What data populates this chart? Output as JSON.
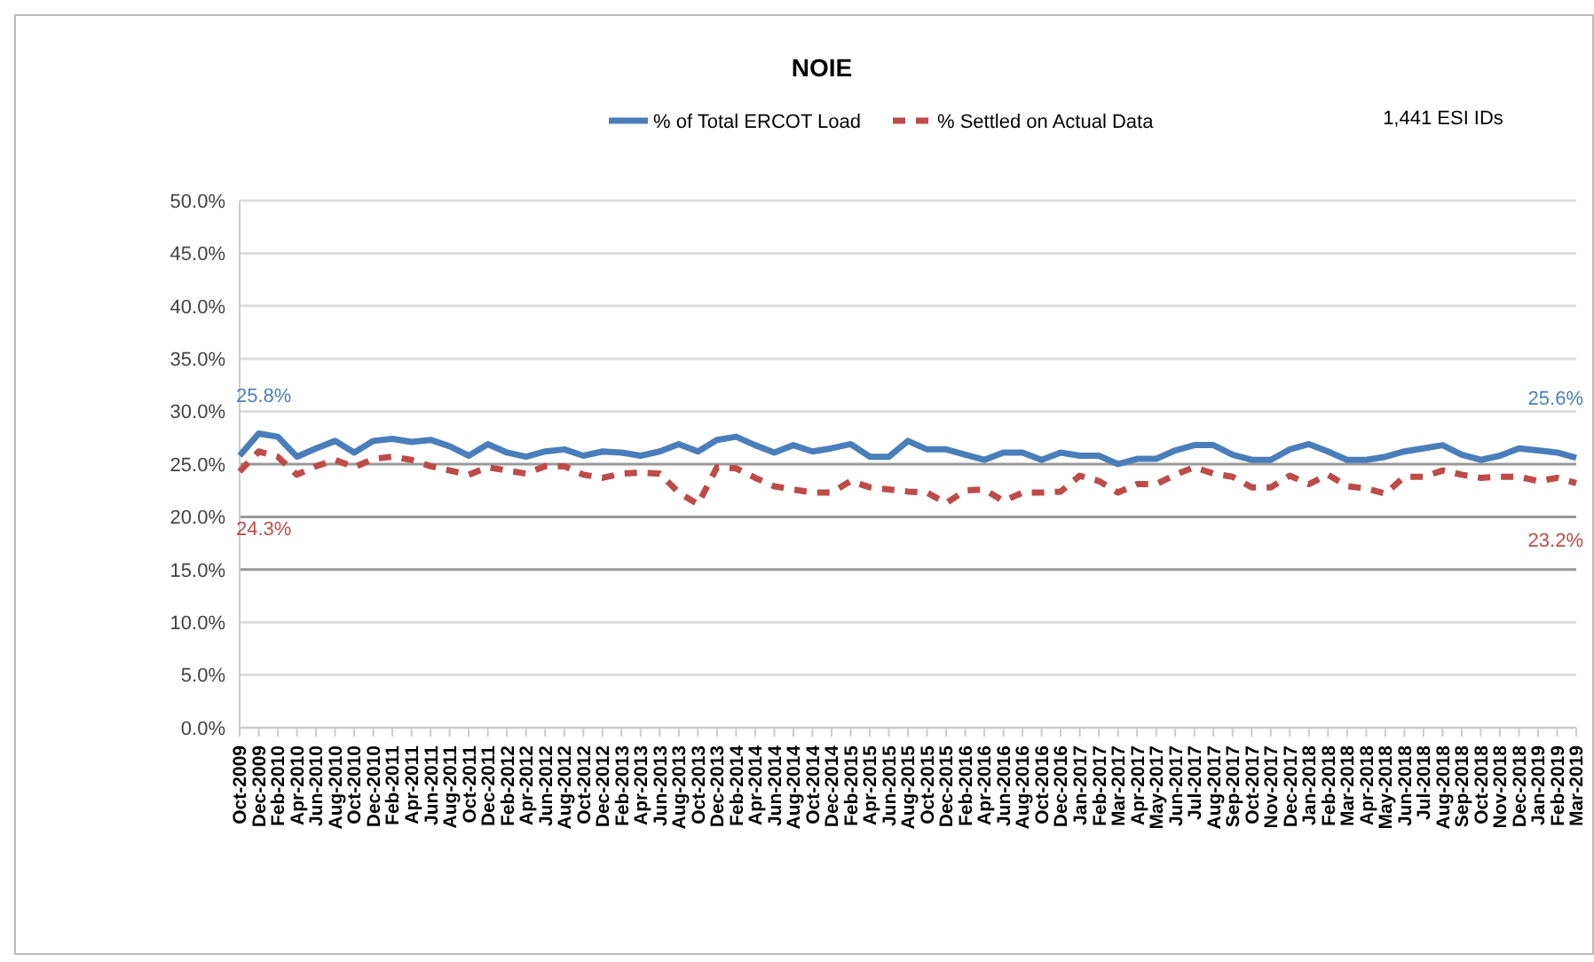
{
  "chart_data": {
    "type": "line",
    "title": "NOIE",
    "categories": [
      "Oct-2009",
      "Dec-2009",
      "Feb-2010",
      "Apr-2010",
      "Jun-2010",
      "Aug-2010",
      "Oct-2010",
      "Dec-2010",
      "Feb-2011",
      "Apr-2011",
      "Jun-2011",
      "Aug-2011",
      "Oct-2011",
      "Dec-2011",
      "Feb-2012",
      "Apr-2012",
      "Jun-2012",
      "Aug-2012",
      "Oct-2012",
      "Dec-2012",
      "Feb-2013",
      "Apr-2013",
      "Jun-2013",
      "Aug-2013",
      "Oct-2013",
      "Dec-2013",
      "Feb-2014",
      "Apr-2014",
      "Jun-2014",
      "Aug-2014",
      "Oct-2014",
      "Dec-2014",
      "Feb-2015",
      "Apr-2015",
      "Jun-2015",
      "Aug-2015",
      "Oct-2015",
      "Dec-2015",
      "Feb-2016",
      "Apr-2016",
      "Jun-2016",
      "Aug-2016",
      "Oct-2016",
      "Dec-2016",
      "Jan-2017",
      "Feb-2017",
      "Mar-2017",
      "Apr-2017",
      "May-2017",
      "Jun-2017",
      "Jul-2017",
      "Aug-2017",
      "Sep-2017",
      "Oct-2017",
      "Nov-2017",
      "Dec-2017",
      "Jan-2018",
      "Feb-2018",
      "Mar-2018",
      "Apr-2018",
      "May-2018",
      "Jun-2018",
      "Jul-2018",
      "Aug-2018",
      "Sep-2018",
      "Oct-2018",
      "Nov-2018",
      "Dec-2018",
      "Jan-2019",
      "Feb-2019",
      "Mar-2019"
    ],
    "series": [
      {
        "name": "% of Total ERCOT Load",
        "color": "#4a7ebb",
        "line_style": "solid",
        "values": [
          25.8,
          27.9,
          27.6,
          25.7,
          26.5,
          27.2,
          26.1,
          27.2,
          27.4,
          27.1,
          27.3,
          26.7,
          25.8,
          26.9,
          26.1,
          25.7,
          26.2,
          26.4,
          25.8,
          26.2,
          26.1,
          25.8,
          26.2,
          26.9,
          26.2,
          27.3,
          27.6,
          26.8,
          26.1,
          26.8,
          26.2,
          26.5,
          26.9,
          25.7,
          25.7,
          27.2,
          26.4,
          26.4,
          25.9,
          25.4,
          26.1,
          26.1,
          25.4,
          26.1,
          25.8,
          25.8,
          25.0,
          25.5,
          25.5,
          26.3,
          26.8,
          26.8,
          25.9,
          25.4,
          25.4,
          26.4,
          26.9,
          26.2,
          25.4,
          25.4,
          25.7,
          26.2,
          26.5,
          26.8,
          25.9,
          25.4,
          25.8,
          26.5,
          26.3,
          26.1,
          25.6
        ]
      },
      {
        "name": "% Settled on Actual Data",
        "color": "#be4b48",
        "line_style": "dashed",
        "values": [
          24.3,
          26.2,
          25.7,
          24.0,
          24.8,
          25.4,
          24.7,
          25.5,
          25.7,
          25.4,
          24.8,
          24.4,
          24.0,
          24.7,
          24.4,
          24.1,
          24.8,
          24.8,
          24.0,
          23.7,
          24.1,
          24.2,
          24.1,
          22.3,
          21.2,
          24.7,
          24.6,
          23.7,
          22.9,
          22.6,
          22.3,
          22.3,
          23.4,
          22.8,
          22.6,
          22.4,
          22.3,
          21.3,
          22.5,
          22.6,
          21.5,
          22.3,
          22.3,
          22.4,
          23.9,
          23.4,
          22.3,
          23.1,
          23.1,
          24.0,
          24.7,
          24.1,
          23.8,
          22.8,
          22.8,
          23.9,
          23.1,
          24.0,
          22.9,
          22.7,
          22.2,
          23.8,
          23.8,
          24.4,
          24.0,
          23.7,
          23.8,
          23.8,
          23.4,
          23.7,
          23.2
        ]
      }
    ],
    "ylim": [
      0,
      50
    ],
    "yticks": [
      {
        "value": 0,
        "label": "0.0%"
      },
      {
        "value": 5,
        "label": "5.0%"
      },
      {
        "value": 10,
        "label": "10.0%"
      },
      {
        "value": 15,
        "label": "15.0%"
      },
      {
        "value": 20,
        "label": "20.0%"
      },
      {
        "value": 25,
        "label": "25.0%"
      },
      {
        "value": 30,
        "label": "30.0%"
      },
      {
        "value": 35,
        "label": "35.0%"
      },
      {
        "value": 40,
        "label": "40.0%"
      },
      {
        "value": 45,
        "label": "45.0%"
      },
      {
        "value": 50,
        "label": "50.0%"
      }
    ],
    "grid": "y",
    "legend": "top",
    "marker": "none",
    "annotations": [
      {
        "text": "25.8%",
        "x": "Oct-2009",
        "y": 25.8
      },
      {
        "text": "24.3%",
        "x": "Oct-2009",
        "y": 24.3
      },
      {
        "text": "25.6%",
        "x": "Mar-2019",
        "y": 25.6
      },
      {
        "text": "23.2%",
        "x": "Mar-2019",
        "y": 23.2
      },
      "1,441 ESI IDs"
    ]
  }
}
